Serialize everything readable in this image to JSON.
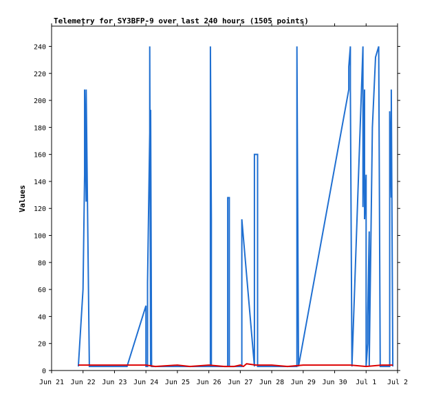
{
  "chart_data": {
    "type": "line",
    "title": "Telemetry for SY3BFP-9 over last 240 hours (1505 points)",
    "xlabel": "",
    "ylabel": "Values",
    "ylim": [
      0,
      255
    ],
    "yticks": [
      0,
      20,
      40,
      60,
      80,
      100,
      120,
      140,
      160,
      180,
      200,
      220,
      240
    ],
    "xlim": [
      0,
      11
    ],
    "xticks": [
      "Jun 21",
      "Jun 22",
      "Jun 23",
      "Jun 24",
      "Jun 25",
      "Jun 26",
      "Jun 27",
      "Jun 28",
      "Jun 29",
      "Jun 30",
      "Jul 1",
      "Jul 2"
    ],
    "grid": false,
    "series": [
      {
        "color": "#1f6fd1",
        "x": [
          0.85,
          1.0,
          1.05,
          1.05,
          1.1,
          1.1,
          1.2,
          1.2,
          1.22,
          1.22,
          2.4,
          3.0,
          3.0,
          3.05,
          3.05,
          3.12,
          3.12,
          3.15,
          3.15,
          3.18,
          3.18,
          3.25,
          3.25,
          5.05,
          5.05,
          5.08,
          5.08,
          5.6,
          5.6,
          5.65,
          5.65,
          6.05,
          6.05,
          6.45,
          6.45,
          6.55,
          6.55,
          7.8,
          7.8,
          7.85,
          9.45,
          9.45,
          9.5,
          9.5,
          9.55,
          9.55,
          9.9,
          9.9,
          9.95,
          9.95,
          10.0,
          10.0,
          10.05,
          10.05,
          10.1,
          10.1,
          10.2,
          10.3,
          10.4,
          10.45,
          10.45,
          10.75,
          10.75,
          10.8,
          10.8,
          10.85
        ],
        "y": [
          3,
          60,
          145,
          208,
          125,
          208,
          3,
          3,
          3,
          3,
          3,
          48,
          3,
          3,
          65,
          176,
          240,
          3,
          193,
          3,
          3,
          3,
          3,
          3,
          240,
          112,
          3,
          3,
          128,
          128,
          3,
          3,
          112,
          3,
          160,
          160,
          3,
          3,
          240,
          3,
          208,
          225,
          240,
          208,
          3,
          3,
          240,
          121,
          208,
          112,
          145,
          3,
          20,
          40,
          103,
          3,
          180,
          232,
          240,
          3,
          3,
          3,
          192,
          128,
          208,
          3
        ]
      },
      {
        "color": "#dd0000",
        "x": [
          0.85,
          2.0,
          2.5,
          3.0,
          3.3,
          4.0,
          4.4,
          5.0,
          5.5,
          5.8,
          6.0,
          6.1,
          6.2,
          6.5,
          7.0,
          7.5,
          8.0,
          8.5,
          9.0,
          9.5,
          10.0,
          10.5,
          10.85
        ],
        "y": [
          4,
          4,
          4,
          4,
          3,
          4,
          3,
          4,
          3,
          3,
          4,
          3,
          5,
          4,
          4,
          3,
          4,
          4,
          4,
          4,
          3,
          4,
          4
        ]
      }
    ]
  }
}
